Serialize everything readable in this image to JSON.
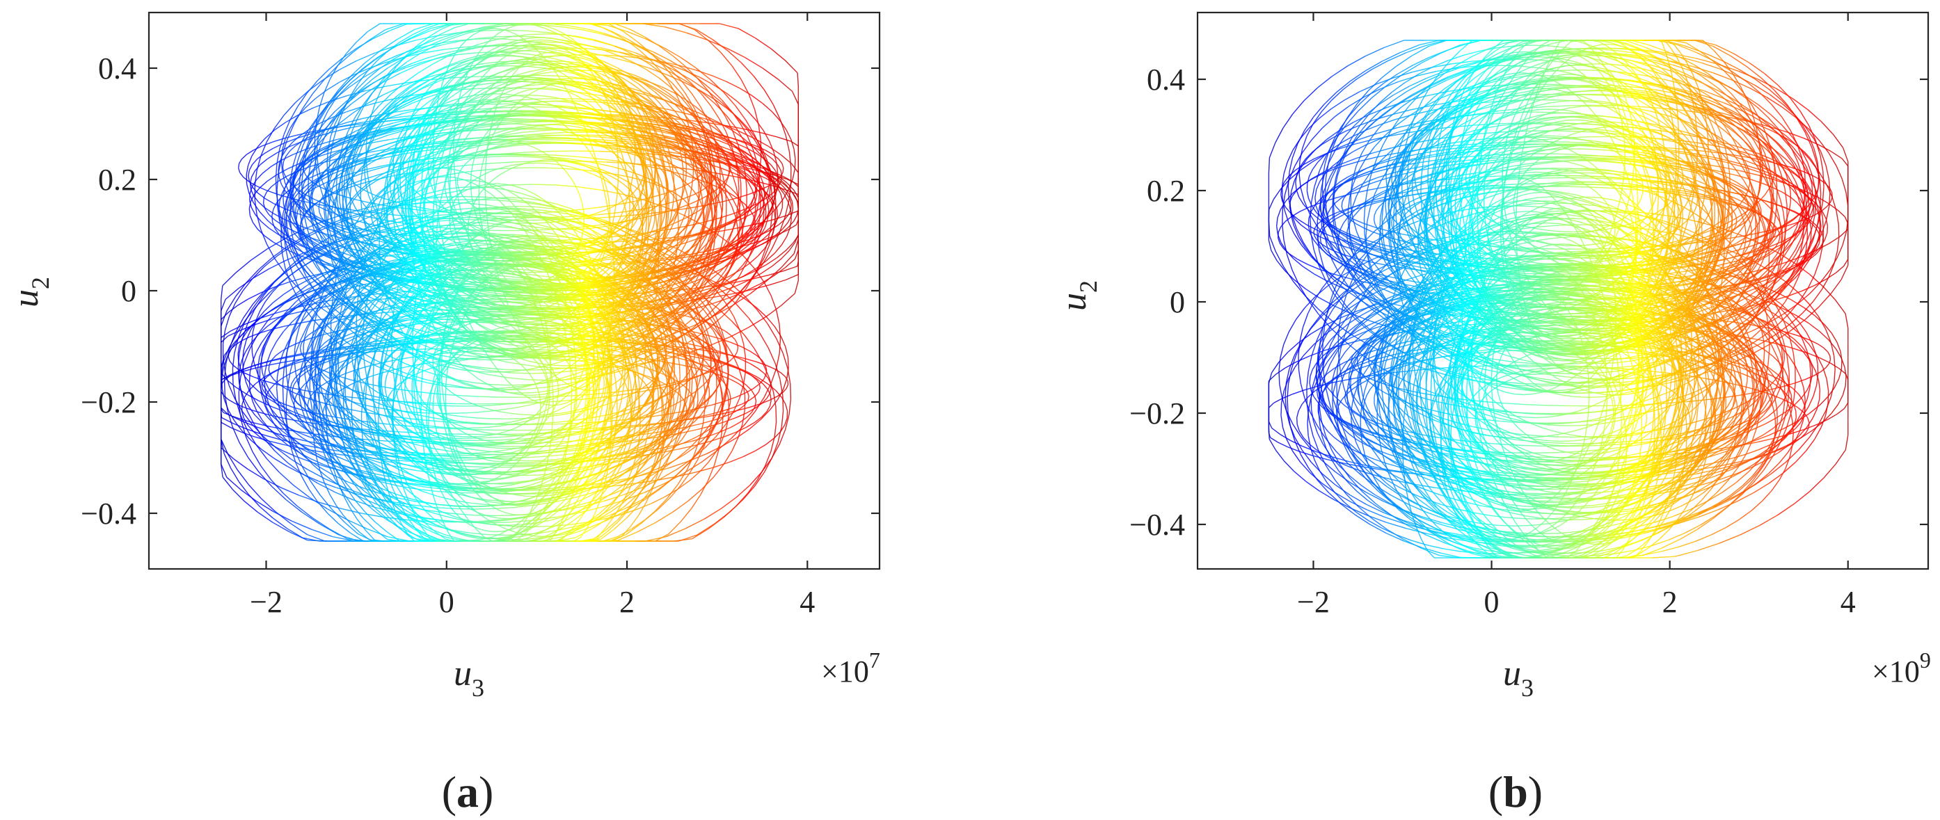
{
  "chart_data": [
    {
      "type": "scatter",
      "panel_label": "a",
      "xlabel": "u",
      "xlabel_sub": "3",
      "ylabel": "u",
      "ylabel_sub": "2",
      "x_multiplier_base": "×10",
      "x_multiplier_exp": "7",
      "xlim": [
        -3.3,
        4.8
      ],
      "ylim": [
        -0.5,
        0.5
      ],
      "xticks": [
        -2,
        0,
        2,
        4
      ],
      "yticks": [
        -0.4,
        -0.2,
        0,
        0.2,
        0.4
      ],
      "xtick_labels": [
        "−2",
        "0",
        "2",
        "4"
      ],
      "ytick_labels": [
        "−0.4",
        "−0.2",
        "0",
        "0.2",
        "0.4"
      ],
      "colormap": "jet (colored by u3, blue at low u3 to dark red at high u3)",
      "attractor": {
        "x_extent": [
          -2.5,
          3.9
        ],
        "y_extent": [
          -0.45,
          0.48
        ],
        "upper_lobe_center_x": 1.0,
        "lower_lobe_center_x": 0.5
      }
    },
    {
      "type": "scatter",
      "panel_label": "b",
      "xlabel": "u",
      "xlabel_sub": "3",
      "ylabel": "u",
      "ylabel_sub": "2",
      "x_multiplier_base": "×10",
      "x_multiplier_exp": "9",
      "xlim": [
        -3.3,
        4.9
      ],
      "ylim": [
        -0.48,
        0.52
      ],
      "xticks": [
        -2,
        0,
        2,
        4
      ],
      "yticks": [
        -0.4,
        -0.2,
        0,
        0.2,
        0.4
      ],
      "xtick_labels": [
        "−2",
        "0",
        "2",
        "4"
      ],
      "ytick_labels": [
        "−0.4",
        "−0.2",
        "0",
        "0.2",
        "0.4"
      ],
      "colormap": "jet (colored by u3, blue at low u3 to dark red at high u3)",
      "attractor": {
        "x_extent": [
          -2.5,
          4.0
        ],
        "y_extent": [
          -0.46,
          0.47
        ],
        "upper_lobe_center_x": 0.8,
        "lower_lobe_center_x": 0.7
      }
    }
  ],
  "captions": [
    {
      "open": "(",
      "letter": "a",
      "close": ")"
    },
    {
      "open": "(",
      "letter": "b",
      "close": ")"
    }
  ]
}
